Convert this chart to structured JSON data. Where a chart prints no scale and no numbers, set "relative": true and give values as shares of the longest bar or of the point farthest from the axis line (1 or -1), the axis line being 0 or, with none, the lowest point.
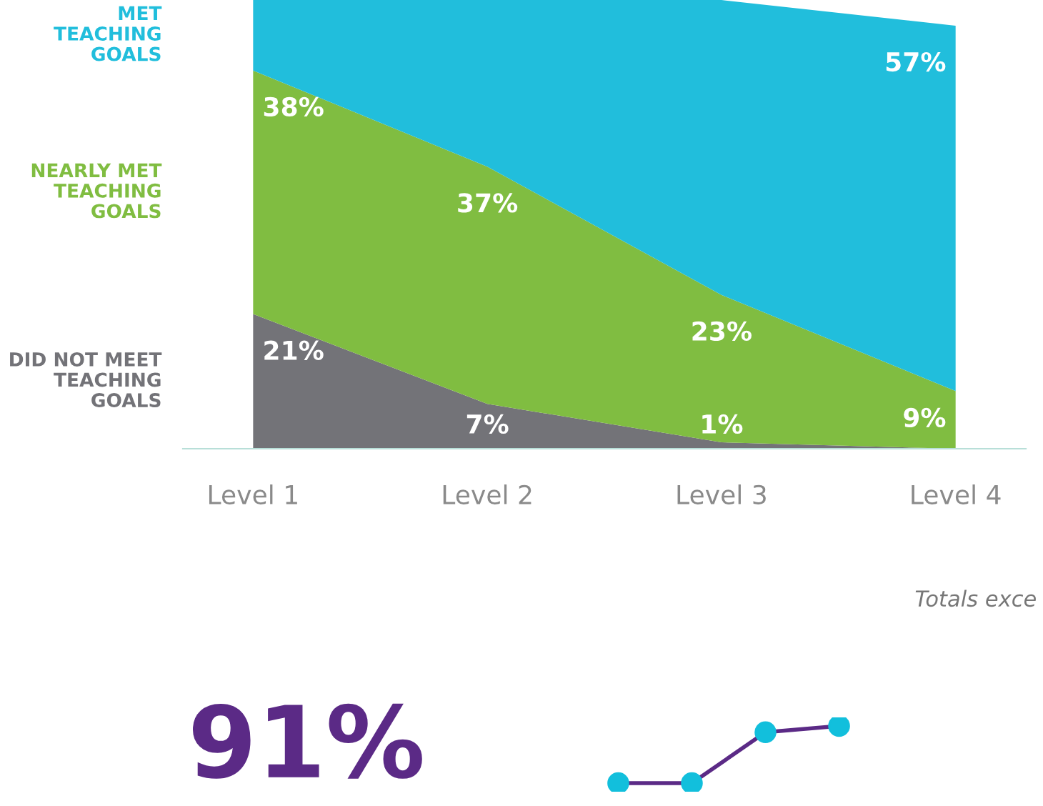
{
  "chart_data": [
    {
      "type": "area",
      "stacked": true,
      "categories": [
        "Level 1",
        "Level 2",
        "Level 3",
        "Level 4"
      ],
      "tick_labels": "x",
      "grid": false,
      "legend": false,
      "series": [
        {
          "name": "DID NOT MEET\nTEACHING\nGOALS",
          "color": "#737378",
          "values": [
            21,
            7,
            1,
            0
          ],
          "value_labels": [
            "21%",
            "7%",
            "1%",
            null
          ]
        },
        {
          "name": "NEARLY MET\nTEACHING\nGOALS",
          "color": "#80bd41",
          "values": [
            38,
            37,
            23,
            9
          ],
          "value_labels": [
            "38%",
            "37%",
            "23%",
            "9%"
          ]
        },
        {
          "name": "MET\nTEACHING\nGOALS",
          "color": "#21bedc",
          "values": [
            11,
            26,
            46,
            57
          ],
          "value_labels": [
            null,
            null,
            null,
            "57%"
          ]
        }
      ],
      "annotations": [
        "Totals exce"
      ]
    },
    {
      "type": "line",
      "relative": true,
      "categories": [
        null,
        null,
        null,
        null
      ],
      "marker": "circle",
      "series": [
        {
          "color": "#5b2a86",
          "values": [
            0,
            0,
            0.89,
            1
          ]
        }
      ],
      "annotations": [
        "91%"
      ]
    }
  ]
}
